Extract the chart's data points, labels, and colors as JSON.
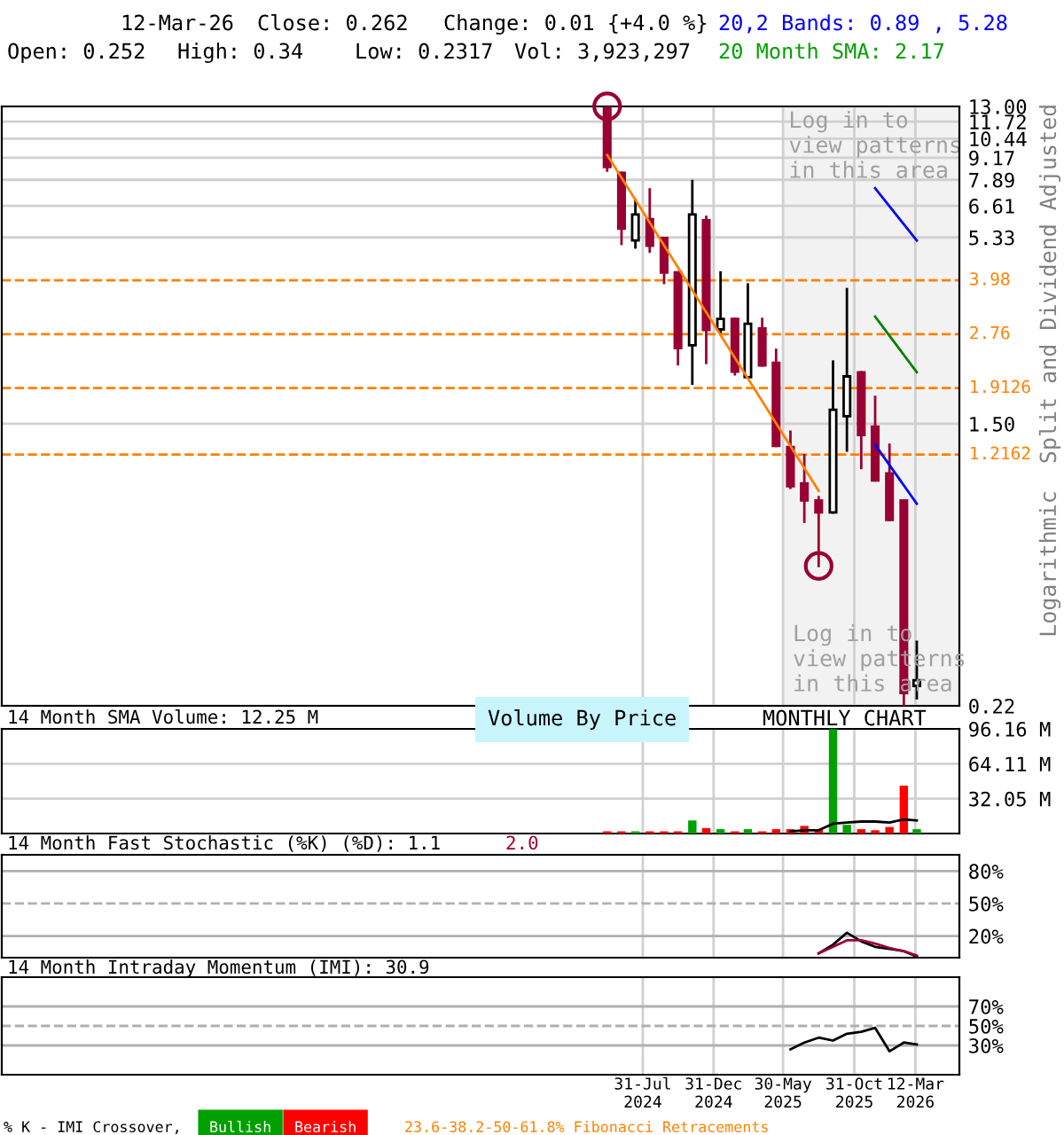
{
  "chart_data": [
    {
      "type": "candlestick",
      "xlim": [
        "2020-10-15",
        "2026-06-15"
      ],
      "ylim": [
        0.22,
        13.0
      ],
      "log": true,
      "grid": true,
      "tick_labels": "y",
      "yticks": [
        0.22,
        {
          "value": 1.5,
          "label": "1.50"
        },
        5.33,
        6.61,
        7.89,
        9.17,
        10.44,
        11.72,
        {
          "value": 13.0,
          "label": "13.00"
        }
      ],
      "xticks": [
        {
          "value": "2024-07-31",
          "label": null
        },
        {
          "value": "2024-12-31",
          "label": null
        },
        {
          "value": "2025-05-30",
          "label": null
        },
        {
          "value": "2025-10-31",
          "label": null
        },
        {
          "value": "2026-03-12",
          "label": null
        }
      ],
      "x": [
        "2024-05-15",
        "2024-06-15",
        "2024-07-15",
        "2024-08-15",
        "2024-09-15",
        "2024-10-15",
        "2024-11-15",
        "2024-12-15",
        "2025-01-15",
        "2025-02-15",
        "2025-03-15",
        "2025-04-15",
        "2025-05-15",
        "2025-06-15",
        "2025-07-15",
        "2025-08-15",
        "2025-09-15",
        "2025-10-15",
        "2025-11-15",
        "2025-12-15",
        "2026-01-15",
        "2026-02-15",
        "2026-03-15"
      ],
      "ohlc": [
        [
          13.0,
          13.0,
          8.4,
          8.61
        ],
        [
          8.27,
          8.27,
          5.1,
          5.66
        ],
        [
          5.22,
          6.87,
          4.98,
          6.23
        ],
        [
          6.04,
          7.39,
          4.84,
          5.04
        ],
        [
          5.31,
          5.31,
          3.91,
          4.2
        ],
        [
          4.2,
          4.2,
          2.25,
          2.51
        ],
        [
          2.56,
          7.82,
          1.97,
          6.23
        ],
        [
          5.99,
          6.13,
          2.27,
          2.84
        ],
        [
          2.85,
          4.2,
          2.8,
          3.06
        ],
        [
          3.06,
          3.06,
          2.1,
          2.14
        ],
        [
          2.06,
          3.87,
          2.06,
          2.96
        ],
        [
          2.87,
          3.06,
          2.23,
          2.23
        ],
        [
          2.27,
          2.48,
          1.29,
          1.29
        ],
        [
          1.28,
          1.42,
          0.97,
          0.98
        ],
        [
          1.0,
          1.21,
          0.77,
          0.89
        ],
        [
          0.89,
          0.91,
          0.57,
          0.82
        ],
        [
          0.82,
          2.29,
          0.82,
          1.65
        ],
        [
          1.58,
          3.75,
          1.25,
          2.07
        ],
        [
          2.13,
          2.13,
          1.11,
          1.39
        ],
        [
          1.47,
          1.8,
          1.02,
          1.02
        ],
        [
          1.07,
          1.3,
          0.78,
          0.78
        ],
        [
          0.89,
          0.89,
          0.22,
          0.24
        ],
        [
          0.252,
          0.34,
          0.2317,
          0.262
        ]
      ],
      "series": [
        {
          "type": "line",
          "color": "#ff8000",
          "x": [
            "2024-05-15",
            "2025-08-15"
          ],
          "values": [
            9.34,
            0.95
          ]
        },
        {
          "type": "line",
          "color": "#0000ff",
          "x": [
            "2025-12-15",
            "2026-03-15"
          ],
          "values": [
            7.45,
            5.22
          ]
        },
        {
          "type": "line",
          "color": "#008000",
          "x": [
            "2025-12-15",
            "2026-03-15"
          ],
          "values": [
            3.11,
            2.13
          ]
        },
        {
          "type": "line",
          "color": "#0000ff",
          "x": [
            "2025-12-15",
            "2026-03-15"
          ],
          "values": [
            1.3,
            0.87
          ]
        },
        {
          "type": "scatter",
          "marker": "circle",
          "color": "#990033",
          "x": [
            "2024-05-15",
            "2025-08-15"
          ],
          "values": [
            13.0,
            0.57
          ]
        }
      ],
      "ref_lines": [
        {
          "axis": "y",
          "value": 3.98,
          "label": "3.98",
          "color": "#ff8000",
          "line_style": "dashed"
        },
        {
          "axis": "y",
          "value": 2.76,
          "label": "2.76",
          "color": "#ff8000",
          "line_style": "dashed"
        },
        {
          "axis": "y",
          "value": 1.9126,
          "label": "1.9126",
          "color": "#ff8000",
          "line_style": "dashed"
        },
        {
          "axis": "y",
          "value": 1.2162,
          "label": "1.2162",
          "color": "#ff8000",
          "line_style": "dashed"
        }
      ],
      "bands": [
        {
          "axis": "x",
          "from": "2025-05-30",
          "to": "2026-06-15",
          "label": "Log in to\nview patterns\nin this area",
          "color": "#f2f2f2"
        }
      ],
      "annotations": [
        "12-Mar-26",
        "Close: 0.262",
        "Change: 0.01 {+4.0 %}",
        "Open: 0.252",
        "High: 0.34",
        "Low: 0.2317",
        "Vol: 3,923,297",
        "20,2 Bands: 0.89 , 5.28",
        "20 Month SMA: 2.17",
        "Split and Dividend Adjusted",
        "Logarithmic",
        "Log in to\nview patterns\nin this area"
      ]
    },
    {
      "type": "bar",
      "title": "14 Month SMA Volume: 12.25 M",
      "xlim": [
        "2020-10-15",
        "2026-06-15"
      ],
      "ylim": [
        0,
        96.16
      ],
      "grid": true,
      "tick_labels": "y",
      "yticks": [
        {
          "value": 32.05,
          "label": "32.05 M"
        },
        {
          "value": 64.11,
          "label": "64.11 M"
        },
        {
          "value": 96.16,
          "label": "96.16 M"
        }
      ],
      "xticks": [
        {
          "value": "2024-07-31",
          "label": null
        },
        {
          "value": "2024-12-31",
          "label": null
        },
        {
          "value": "2025-05-30",
          "label": null
        },
        {
          "value": "2025-10-31",
          "label": null
        },
        {
          "value": "2026-03-12",
          "label": null
        }
      ],
      "x": [
        "2024-05-15",
        "2024-06-15",
        "2024-07-15",
        "2024-08-15",
        "2024-09-15",
        "2024-10-15",
        "2024-11-15",
        "2024-12-15",
        "2025-01-15",
        "2025-02-15",
        "2025-03-15",
        "2025-04-15",
        "2025-05-15",
        "2025-06-15",
        "2025-07-15",
        "2025-08-15",
        "2025-09-15",
        "2025-10-15",
        "2025-11-15",
        "2025-12-15",
        "2026-01-15",
        "2026-02-15",
        "2026-03-15"
      ],
      "series": [
        {
          "type": "bar",
          "values": [
            2,
            2,
            2,
            2,
            2,
            2,
            12,
            5,
            4,
            2,
            4,
            2,
            4,
            4,
            7,
            4,
            96,
            8,
            4,
            3,
            6,
            44,
            4
          ],
          "colors": [
            "#ff0000",
            "#ff0000",
            "#00a000",
            "#ff0000",
            "#ff0000",
            "#ff0000",
            "#00a000",
            "#ff0000",
            "#00a000",
            "#ff0000",
            "#00a000",
            "#ff0000",
            "#ff0000",
            "#ff0000",
            "#ff0000",
            "#ff0000",
            "#00a000",
            "#00a000",
            "#ff0000",
            "#ff0000",
            "#ff0000",
            "#ff0000",
            "#00a000"
          ]
        },
        {
          "type": "line",
          "color": "#000000",
          "x": [
            "2025-06-15",
            "2025-07-15",
            "2025-08-15",
            "2025-09-15",
            "2025-10-15",
            "2025-11-15",
            "2025-12-15",
            "2026-01-15",
            "2026-02-15",
            "2026-03-15"
          ],
          "values": [
            2,
            3,
            3,
            9,
            10,
            11,
            11,
            10,
            13,
            12
          ]
        }
      ],
      "annotations": [
        "Volume By Price",
        "MONTHLY CHART"
      ]
    },
    {
      "type": "line",
      "title": "14 Month Fast Stochastic (%K) (%D): 1.1",
      "xlim": [
        "2020-10-15",
        "2026-06-15"
      ],
      "ylim": [
        0,
        95
      ],
      "grid": "x",
      "tick_labels": "y",
      "yticks": [
        {
          "value": 20,
          "label": "20%"
        },
        {
          "value": 50,
          "label": "50%"
        },
        {
          "value": 80,
          "label": "80%"
        }
      ],
      "xticks": [
        {
          "value": "2024-07-31",
          "label": null
        },
        {
          "value": "2024-12-31",
          "label": null
        },
        {
          "value": "2025-05-30",
          "label": null
        },
        {
          "value": "2025-10-31",
          "label": null
        },
        {
          "value": "2026-03-12",
          "label": null
        }
      ],
      "x": [
        "2025-08-15",
        "2025-09-15",
        "2025-10-15",
        "2025-11-15",
        "2025-12-15",
        "2026-01-15",
        "2026-02-15",
        "2026-03-15"
      ],
      "series": [
        {
          "color": "#000000",
          "values": [
            4,
            12,
            23,
            15,
            10,
            8,
            6,
            1
          ]
        },
        {
          "color": "#a00030",
          "values": [
            4,
            10,
            16,
            16,
            13,
            9,
            6,
            2
          ]
        }
      ],
      "ref_lines": [
        {
          "axis": "y",
          "value": 80,
          "color": "#b0b0b0",
          "line_style": "solid"
        },
        {
          "axis": "y",
          "value": 50,
          "color": "#b0b0b0",
          "line_style": "dashed"
        },
        {
          "axis": "y",
          "value": 20,
          "color": "#b0b0b0",
          "line_style": "solid"
        }
      ],
      "annotations": [
        "2.0"
      ]
    },
    {
      "type": "line",
      "title": "14 Month Intraday Momentum (IMI): 30.9",
      "xlim": [
        "2020-10-15",
        "2026-06-15"
      ],
      "ylim": [
        0,
        100
      ],
      "grid": "x",
      "yticks": [
        {
          "value": 30,
          "label": "30%"
        },
        {
          "value": 50,
          "label": "50%"
        },
        {
          "value": 70,
          "label": "70%"
        }
      ],
      "xticks": [
        {
          "value": "2024-07-31",
          "label": "31-Jul\n2024"
        },
        {
          "value": "2024-12-31",
          "label": "31-Dec\n2024"
        },
        {
          "value": "2025-05-30",
          "label": "30-May\n2025"
        },
        {
          "value": "2025-10-31",
          "label": "31-Oct\n2025"
        },
        {
          "value": "2026-03-12",
          "label": "12-Mar\n2026"
        }
      ],
      "x": [
        "2025-06-15",
        "2025-07-15",
        "2025-08-15",
        "2025-09-15",
        "2025-10-15",
        "2025-11-15",
        "2025-12-15",
        "2026-01-15",
        "2026-02-15",
        "2026-03-15"
      ],
      "series": [
        {
          "color": "#000000",
          "values": [
            26,
            33,
            38,
            35,
            42,
            44,
            48,
            24,
            33,
            31
          ]
        }
      ],
      "ref_lines": [
        {
          "axis": "y",
          "value": 70,
          "color": "#b0b0b0",
          "line_style": "solid"
        },
        {
          "axis": "y",
          "value": 50,
          "color": "#b0b0b0",
          "line_style": "dashed"
        },
        {
          "axis": "y",
          "value": 30,
          "color": "#b0b0b0",
          "line_style": "solid"
        }
      ],
      "annotations": [
        "% K - IMI Crossover,",
        "Bullish",
        "Bearish",
        "23.6-38.2-50-61.8% Fibonacci Retracements"
      ]
    }
  ]
}
